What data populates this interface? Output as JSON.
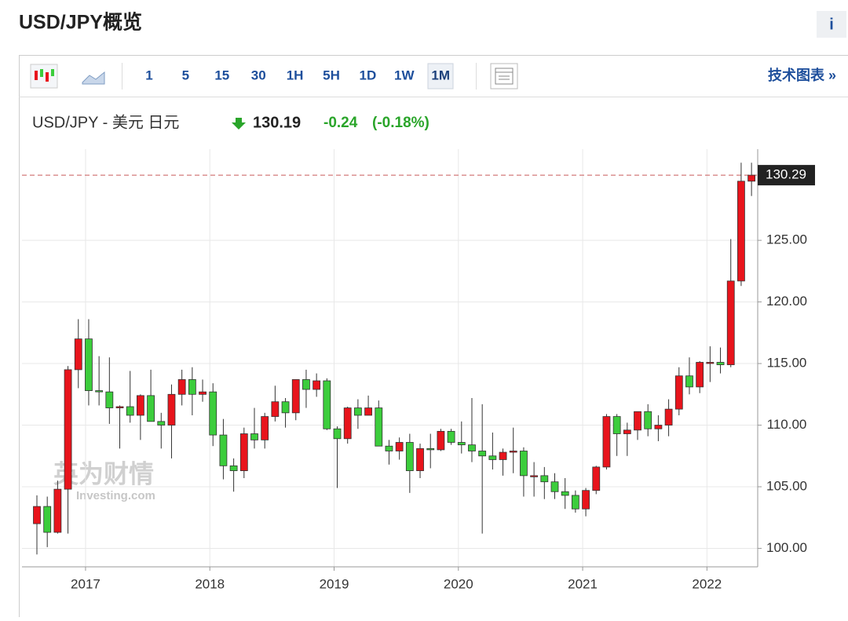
{
  "header": {
    "title": "USD/JPY概览",
    "info": "i"
  },
  "toolbar": {
    "intervals": [
      "1",
      "5",
      "15",
      "30",
      "1H",
      "5H",
      "1D",
      "1W",
      "1M"
    ],
    "active": "1M",
    "link": "技术图表 »"
  },
  "quote": {
    "name": "USD/JPY - 美元 日元",
    "price": "130.19",
    "change": "-0.24",
    "change_pct": "(-0.18%)"
  },
  "watermark": {
    "brand": "英为财情",
    "site": "Investing.com"
  },
  "chart_data": {
    "type": "candlestick",
    "categories": [
      null,
      null,
      null,
      null,
      null,
      "2017",
      null,
      null,
      null,
      null,
      null,
      null,
      null,
      null,
      null,
      null,
      null,
      "2018",
      null,
      null,
      null,
      null,
      null,
      null,
      null,
      null,
      null,
      null,
      null,
      "2019",
      null,
      null,
      null,
      null,
      null,
      null,
      null,
      null,
      null,
      null,
      null,
      "2020",
      null,
      null,
      null,
      null,
      null,
      null,
      null,
      null,
      null,
      null,
      null,
      "2021",
      null,
      null,
      null,
      null,
      null,
      null,
      null,
      null,
      null,
      null,
      null,
      "2022",
      null,
      null,
      null,
      null
    ],
    "open": [
      102.0,
      103.4,
      101.3,
      104.8,
      114.5,
      117.0,
      112.8,
      112.7,
      111.4,
      111.5,
      110.8,
      112.4,
      110.3,
      110.0,
      112.5,
      113.7,
      112.5,
      112.7,
      109.2,
      106.7,
      106.3,
      109.3,
      108.8,
      110.7,
      111.9,
      111.0,
      113.7,
      112.9,
      113.6,
      109.7,
      108.9,
      111.4,
      110.8,
      111.4,
      108.3,
      107.9,
      108.6,
      106.3,
      108.1,
      108.0,
      109.5,
      108.6,
      108.4,
      107.9,
      107.5,
      107.2,
      107.8,
      107.9,
      105.9,
      105.9,
      105.4,
      104.6,
      104.3,
      103.2,
      104.7,
      106.6,
      110.7,
      109.3,
      109.6,
      111.1,
      109.7,
      110.0,
      111.3,
      114.0,
      113.1,
      115.1,
      115.1,
      114.9,
      121.7,
      129.8
    ],
    "high": [
      104.3,
      104.2,
      105.5,
      114.8,
      118.6,
      118.6,
      115.6,
      115.5,
      111.6,
      114.4,
      112.5,
      114.5,
      111.0,
      113.3,
      114.5,
      114.7,
      113.7,
      113.4,
      110.5,
      107.3,
      109.8,
      111.4,
      111.0,
      113.2,
      112.2,
      113.7,
      114.5,
      114.2,
      113.8,
      109.9,
      111.5,
      112.1,
      112.4,
      112.0,
      108.8,
      109.0,
      109.3,
      108.5,
      109.3,
      109.7,
      109.7,
      110.3,
      112.2,
      111.7,
      109.4,
      108.1,
      109.8,
      108.2,
      107.0,
      106.6,
      106.1,
      105.7,
      104.7,
      104.9,
      106.7,
      110.9,
      110.9,
      110.2,
      111.1,
      111.7,
      110.8,
      112.1,
      114.7,
      115.5,
      115.2,
      116.4,
      116.3,
      125.1,
      131.3,
      131.3
    ],
    "low": [
      99.5,
      100.1,
      101.2,
      101.2,
      113.0,
      111.6,
      111.6,
      110.1,
      108.1,
      110.2,
      108.8,
      110.6,
      108.1,
      107.3,
      111.6,
      110.8,
      111.9,
      108.3,
      105.6,
      104.6,
      105.7,
      108.1,
      108.1,
      110.3,
      109.8,
      110.4,
      111.4,
      112.3,
      109.6,
      104.9,
      108.5,
      109.7,
      110.8,
      108.3,
      106.8,
      107.2,
      104.5,
      105.7,
      106.5,
      107.9,
      108.4,
      107.7,
      107.0,
      101.2,
      106.4,
      105.9,
      106.1,
      104.2,
      104.2,
      104.0,
      104.0,
      103.2,
      102.9,
      102.6,
      104.4,
      106.4,
      107.5,
      107.5,
      108.8,
      109.1,
      108.7,
      109.1,
      110.8,
      112.5,
      112.6,
      113.5,
      114.2,
      114.7,
      121.3,
      128.6
    ],
    "close": [
      103.4,
      101.3,
      104.8,
      114.5,
      117.0,
      112.8,
      112.7,
      111.4,
      111.5,
      110.8,
      112.4,
      110.3,
      110.0,
      112.5,
      113.7,
      112.5,
      112.7,
      109.2,
      106.7,
      106.3,
      109.3,
      108.8,
      110.7,
      111.9,
      111.0,
      113.7,
      112.9,
      113.6,
      109.7,
      108.9,
      111.4,
      110.8,
      111.4,
      108.3,
      107.9,
      108.6,
      106.3,
      108.1,
      108.0,
      109.5,
      108.6,
      108.4,
      107.9,
      107.5,
      107.2,
      107.8,
      107.9,
      105.9,
      105.9,
      105.4,
      104.6,
      104.3,
      103.2,
      104.7,
      106.6,
      110.7,
      109.3,
      109.6,
      111.1,
      109.7,
      110.0,
      111.3,
      114.0,
      113.1,
      115.1,
      115.1,
      114.9,
      121.7,
      129.8,
      130.29
    ],
    "up_color": "#e8141c",
    "down_color": "#3ccd3c",
    "last_value": {
      "value": 130.29,
      "label": "130.29"
    },
    "ylim": [
      98.5,
      132.4
    ],
    "yticks": [
      {
        "value": 100,
        "label": "100.00"
      },
      {
        "value": 105,
        "label": "105.00"
      },
      {
        "value": 110,
        "label": "110.00"
      },
      {
        "value": 115,
        "label": "115.00"
      },
      {
        "value": 120,
        "label": "120.00"
      },
      {
        "value": 125,
        "label": "125.00"
      }
    ],
    "grid": true
  }
}
